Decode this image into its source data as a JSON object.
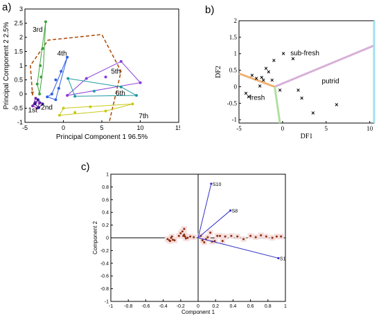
{
  "panels": [
    {
      "label": "a)"
    },
    {
      "label": "b)"
    },
    {
      "label": "c)"
    }
  ],
  "chart_data": [
    {
      "type": "scatter",
      "panel": "a)",
      "xlabel": "Principal Component 1 96.5%",
      "ylabel": "Principal Component 2  2.5%",
      "xlim": [
        -5,
        15
      ],
      "ylim": [
        -1,
        3
      ],
      "xticks": [
        "-5",
        "0",
        "5",
        "10",
        "15"
      ],
      "yticks": [
        "-1",
        "-0.5",
        "0",
        "0.5",
        "1",
        "1.5",
        "2",
        "2.5",
        "3"
      ],
      "groups": [
        {
          "name": "1st",
          "color": "#7f1fb0",
          "hull": [
            [
              -4.0,
              -0.42
            ],
            [
              -3.6,
              -0.15
            ],
            [
              -3.1,
              -0.32
            ],
            [
              -3.4,
              -0.5
            ]
          ],
          "points": [
            [
              -4.0,
              -0.42
            ],
            [
              -3.6,
              -0.15
            ],
            [
              -3.1,
              -0.32
            ],
            [
              -3.4,
              -0.5
            ],
            [
              -3.6,
              -0.3
            ]
          ]
        },
        {
          "name": "2nd",
          "color": "#2a1a8a",
          "hull": [
            [
              -3.7,
              -0.35
            ],
            [
              -3.3,
              -0.2
            ],
            [
              -2.7,
              -0.35
            ],
            [
              -3.2,
              -0.48
            ]
          ],
          "points": [
            [
              -3.7,
              -0.35
            ],
            [
              -3.3,
              -0.2
            ],
            [
              -2.7,
              -0.35
            ],
            [
              -3.2,
              -0.48
            ]
          ]
        },
        {
          "name": "3rd",
          "color": "#3aa43a",
          "hull": [
            [
              -2.3,
              2.55
            ],
            [
              -3.4,
              0.35
            ],
            [
              -3.1,
              0.0
            ],
            [
              -2.6,
              1.0
            ]
          ],
          "points": [
            [
              -2.3,
              2.55
            ],
            [
              -2.7,
              1.6
            ],
            [
              -3.0,
              1.0
            ],
            [
              -3.4,
              0.35
            ],
            [
              -3.1,
              0.0
            ],
            [
              -2.9,
              0.6
            ]
          ]
        },
        {
          "name": "4th",
          "color": "#2e5ee0",
          "hull": [
            [
              0.5,
              1.3
            ],
            [
              -1.5,
              0.0
            ],
            [
              -2.1,
              -0.1
            ],
            [
              -1.0,
              -0.2
            ]
          ],
          "points": [
            [
              0.5,
              1.3
            ],
            [
              -0.3,
              0.8
            ],
            [
              -1.0,
              0.5
            ],
            [
              -1.5,
              0.0
            ],
            [
              -2.1,
              -0.1
            ],
            [
              -1.0,
              -0.2
            ],
            [
              -0.6,
              0.2
            ]
          ]
        },
        {
          "name": "5th",
          "color": "#8a3ad6",
          "hull": [
            [
              7.5,
              1.15
            ],
            [
              10.0,
              0.4
            ],
            [
              0.5,
              -0.05
            ],
            [
              3.0,
              0.55
            ]
          ],
          "points": [
            [
              7.5,
              1.15
            ],
            [
              10.0,
              0.4
            ],
            [
              3.0,
              0.55
            ],
            [
              0.5,
              -0.05
            ],
            [
              5.5,
              0.6
            ]
          ]
        },
        {
          "name": "6th",
          "color": "#1f9aa0",
          "hull": [
            [
              0.6,
              0.55
            ],
            [
              1.5,
              -0.08
            ],
            [
              9.5,
              -0.05
            ],
            [
              7.5,
              0.25
            ]
          ],
          "points": [
            [
              0.6,
              0.55
            ],
            [
              1.5,
              -0.08
            ],
            [
              9.5,
              -0.05
            ],
            [
              7.5,
              0.25
            ],
            [
              4.0,
              0.1
            ]
          ]
        },
        {
          "name": "7th",
          "color": "#c8c81a",
          "hull": [
            [
              -0.5,
              -0.75
            ],
            [
              0.0,
              -0.5
            ],
            [
              9.0,
              -0.35
            ],
            [
              5.5,
              -0.6
            ]
          ],
          "points": [
            [
              -0.5,
              -0.75
            ],
            [
              0.0,
              -0.5
            ],
            [
              1.5,
              -0.65
            ],
            [
              5.5,
              -0.6
            ],
            [
              9.0,
              -0.35
            ],
            [
              3.5,
              -0.45
            ]
          ]
        }
      ],
      "label_positions": [
        [
          -4.6,
          -0.65
        ],
        [
          -2.9,
          -0.55
        ],
        [
          -4.0,
          2.2
        ],
        [
          -0.8,
          1.35
        ],
        [
          6.2,
          0.72
        ],
        [
          6.8,
          -0.05
        ],
        [
          9.8,
          -0.85
        ]
      ],
      "arrow_path": [
        [
          6.0,
          -0.95
        ],
        [
          7.5,
          0.8
        ],
        [
          5.0,
          2.1
        ],
        [
          -2.0,
          1.9
        ],
        [
          -4.3,
          1.0
        ],
        [
          -4.0,
          -0.05
        ]
      ]
    },
    {
      "type": "scatter",
      "panel": "b)",
      "xlabel": "DF1",
      "ylabel": "DF2",
      "xlim": [
        -5,
        10.5
      ],
      "ylim": [
        -1.1,
        2
      ],
      "xticks": [
        "-5",
        "0",
        "5",
        "10"
      ],
      "yticks": [
        "-1",
        "-0.5",
        "0",
        "0.5",
        "1",
        "1.5",
        "2"
      ],
      "regions": [
        "fresh",
        "sub-fresh",
        "putrid"
      ],
      "region_label_positions": [
        [
          -3.8,
          -0.4
        ],
        [
          0.9,
          0.95
        ],
        [
          4.5,
          0.1
        ]
      ],
      "points": [
        [
          -3.5,
          0.35
        ],
        [
          -3.0,
          0.25
        ],
        [
          -2.6,
          0.02
        ],
        [
          -2.4,
          0.28
        ],
        [
          -2.2,
          0.2
        ],
        [
          -1.9,
          0.55
        ],
        [
          -1.6,
          0.45
        ],
        [
          0.1,
          1.0
        ],
        [
          1.2,
          0.85
        ],
        [
          -1.2,
          0.2
        ],
        [
          -3.9,
          -0.3
        ],
        [
          -4.2,
          -0.2
        ],
        [
          -0.3,
          -0.1
        ],
        [
          1.8,
          -0.1
        ],
        [
          2.2,
          -0.35
        ],
        [
          3.5,
          -0.8
        ],
        [
          6.2,
          -0.55
        ],
        [
          -1.0,
          0.8
        ]
      ],
      "boundaries": [
        {
          "color": "#d8b0d8",
          "from": [
            -0.9,
            0.0
          ],
          "to": [
            10.5,
            1.25
          ]
        },
        {
          "color": "#f0b070",
          "from": [
            -0.9,
            0.0
          ],
          "to": [
            -5,
            0.4
          ]
        },
        {
          "color": "#b0e0a0",
          "from": [
            -0.9,
            0.0
          ],
          "to": [
            -0.3,
            -1.1
          ]
        },
        {
          "color": "#a0e0f0",
          "from": [
            10.5,
            -1.1
          ],
          "to": [
            10.5,
            2.0
          ]
        }
      ]
    },
    {
      "type": "scatter",
      "panel": "c)",
      "xlabel": "Component 1",
      "ylabel": "Component 2",
      "xlim": [
        -1,
        1
      ],
      "ylim": [
        -1,
        1
      ],
      "xticks": [
        "-1",
        "-0.8",
        "-0.6",
        "-0.4",
        "-0.2",
        "0",
        "0.2",
        "0.4",
        "0.6",
        "0.8",
        "1"
      ],
      "yticks": [
        "-1",
        "-0.8",
        "-0.6",
        "-0.4",
        "-0.2",
        "0",
        "0.2",
        "0.4",
        "0.6",
        "0.8",
        "1"
      ],
      "vectors": [
        {
          "name": "S10",
          "x": 0.15,
          "y": 0.85
        },
        {
          "name": "S8",
          "x": 0.37,
          "y": 0.43
        },
        {
          "name": "S1",
          "x": 0.92,
          "y": -0.32
        }
      ],
      "scores": [
        [
          -0.35,
          -0.02
        ],
        [
          -0.33,
          -0.04
        ],
        [
          -0.31,
          0.0
        ],
        [
          -0.32,
          -0.05
        ],
        [
          -0.29,
          -0.03
        ],
        [
          -0.3,
          0.02
        ],
        [
          -0.27,
          -0.04
        ],
        [
          -0.22,
          0.03
        ],
        [
          -0.2,
          0.07
        ],
        [
          -0.18,
          0.1
        ],
        [
          -0.17,
          0.03
        ],
        [
          -0.16,
          0.05
        ],
        [
          -0.15,
          0.02
        ],
        [
          -0.14,
          -0.01
        ],
        [
          -0.16,
          0.14
        ],
        [
          -0.12,
          0.0
        ],
        [
          -0.09,
          0.02
        ],
        [
          0.03,
          0.03
        ],
        [
          0.05,
          -0.04
        ],
        [
          0.07,
          -0.07
        ],
        [
          0.09,
          -0.02
        ],
        [
          0.11,
          0.01
        ],
        [
          0.14,
          0.08
        ],
        [
          0.16,
          -0.06
        ],
        [
          0.19,
          -0.05
        ],
        [
          0.22,
          0.03
        ],
        [
          0.25,
          0.03
        ],
        [
          0.28,
          -0.05
        ],
        [
          0.31,
          0.02
        ],
        [
          0.38,
          0.03
        ],
        [
          0.45,
          0.02
        ],
        [
          0.52,
          -0.02
        ],
        [
          0.6,
          0.03
        ],
        [
          0.66,
          0.01
        ],
        [
          0.72,
          0.04
        ],
        [
          0.78,
          0.02
        ],
        [
          0.85,
          0.0
        ],
        [
          0.9,
          0.02
        ],
        [
          0.95,
          0.02
        ],
        [
          -0.05,
          0.01
        ]
      ]
    }
  ]
}
